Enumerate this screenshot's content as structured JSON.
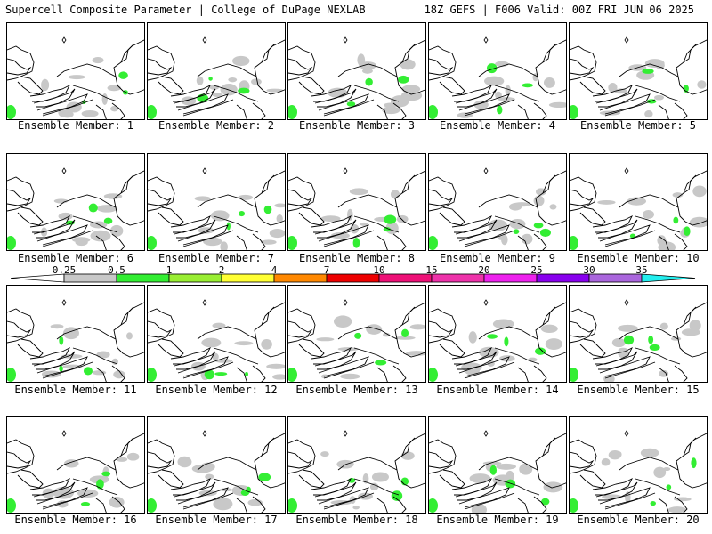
{
  "header": {
    "title": "Supercell Composite Parameter | College of DuPage NEXLAB",
    "run_info": "18Z GEFS | F006 Valid: 00Z FRI JUN 06 2025"
  },
  "colorbar": {
    "labels": [
      "0.25",
      "0.5",
      "1",
      "2",
      "4",
      "7",
      "10",
      "15",
      "20",
      "25",
      "30",
      "35"
    ],
    "colors": [
      "#c8c8c8",
      "#33ee33",
      "#99ee33",
      "#ffff33",
      "#ff8800",
      "#ee0000",
      "#ee1177",
      "#ee33aa",
      "#ee22ee",
      "#8800ee",
      "#aa66dd",
      "#22eeee"
    ]
  },
  "panels": [
    {
      "label": "Ensemble Member: 1"
    },
    {
      "label": "Ensemble Member: 2"
    },
    {
      "label": "Ensemble Member: 3"
    },
    {
      "label": "Ensemble Member: 4"
    },
    {
      "label": "Ensemble Member: 5"
    },
    {
      "label": "Ensemble Member: 6"
    },
    {
      "label": "Ensemble Member: 7"
    },
    {
      "label": "Ensemble Member: 8"
    },
    {
      "label": "Ensemble Member: 9"
    },
    {
      "label": "Ensemble Member: 10"
    },
    {
      "label": "Ensemble Member: 11"
    },
    {
      "label": "Ensemble Member: 12"
    },
    {
      "label": "Ensemble Member: 13"
    },
    {
      "label": "Ensemble Member: 14"
    },
    {
      "label": "Ensemble Member: 15"
    },
    {
      "label": "Ensemble Member: 16"
    },
    {
      "label": "Ensemble Member: 17"
    },
    {
      "label": "Ensemble Member: 18"
    },
    {
      "label": "Ensemble Member: 19"
    },
    {
      "label": "Ensemble Member: 20"
    }
  ]
}
